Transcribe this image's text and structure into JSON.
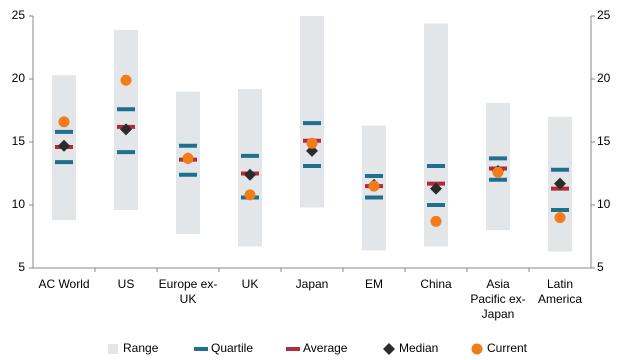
{
  "chart_data": {
    "type": "range",
    "categories": [
      "AC World",
      "US",
      "Europe ex-UK",
      "UK",
      "Japan",
      "EM",
      "China",
      "Asia Pacific ex-Japan",
      "Latin America"
    ],
    "series": [
      {
        "name": "Range",
        "color": "#e3e6e9",
        "low": [
          8.8,
          9.6,
          7.7,
          6.7,
          9.8,
          6.4,
          6.7,
          8.0,
          6.3
        ],
        "high": [
          20.3,
          23.9,
          19.0,
          19.2,
          25.0,
          16.3,
          24.4,
          18.1,
          17.0
        ]
      },
      {
        "name": "Quartile",
        "color": "#1f6f8f",
        "low": [
          13.4,
          14.2,
          12.4,
          10.6,
          13.1,
          10.6,
          10.0,
          12.0,
          9.6
        ],
        "high": [
          15.8,
          17.6,
          14.7,
          13.9,
          16.5,
          12.3,
          13.1,
          13.7,
          12.8
        ]
      },
      {
        "name": "Average",
        "color": "#b02a3c",
        "values": [
          14.6,
          16.2,
          13.6,
          12.5,
          15.1,
          11.5,
          11.7,
          12.9,
          11.3
        ]
      },
      {
        "name": "Median",
        "color": "#2b2b2b",
        "values": [
          14.7,
          16.0,
          13.7,
          12.4,
          14.3,
          11.6,
          11.3,
          12.7,
          11.7
        ]
      },
      {
        "name": "Current",
        "color": "#f07d1a",
        "values": [
          16.6,
          19.9,
          13.7,
          10.8,
          14.9,
          11.5,
          8.7,
          12.6,
          9.0
        ]
      }
    ],
    "ylim": [
      5,
      25
    ],
    "yticks": [
      5,
      10,
      15,
      20,
      25
    ],
    "y2lim": [
      5,
      25
    ],
    "y2ticks": [
      5,
      10,
      15,
      20,
      25
    ]
  }
}
